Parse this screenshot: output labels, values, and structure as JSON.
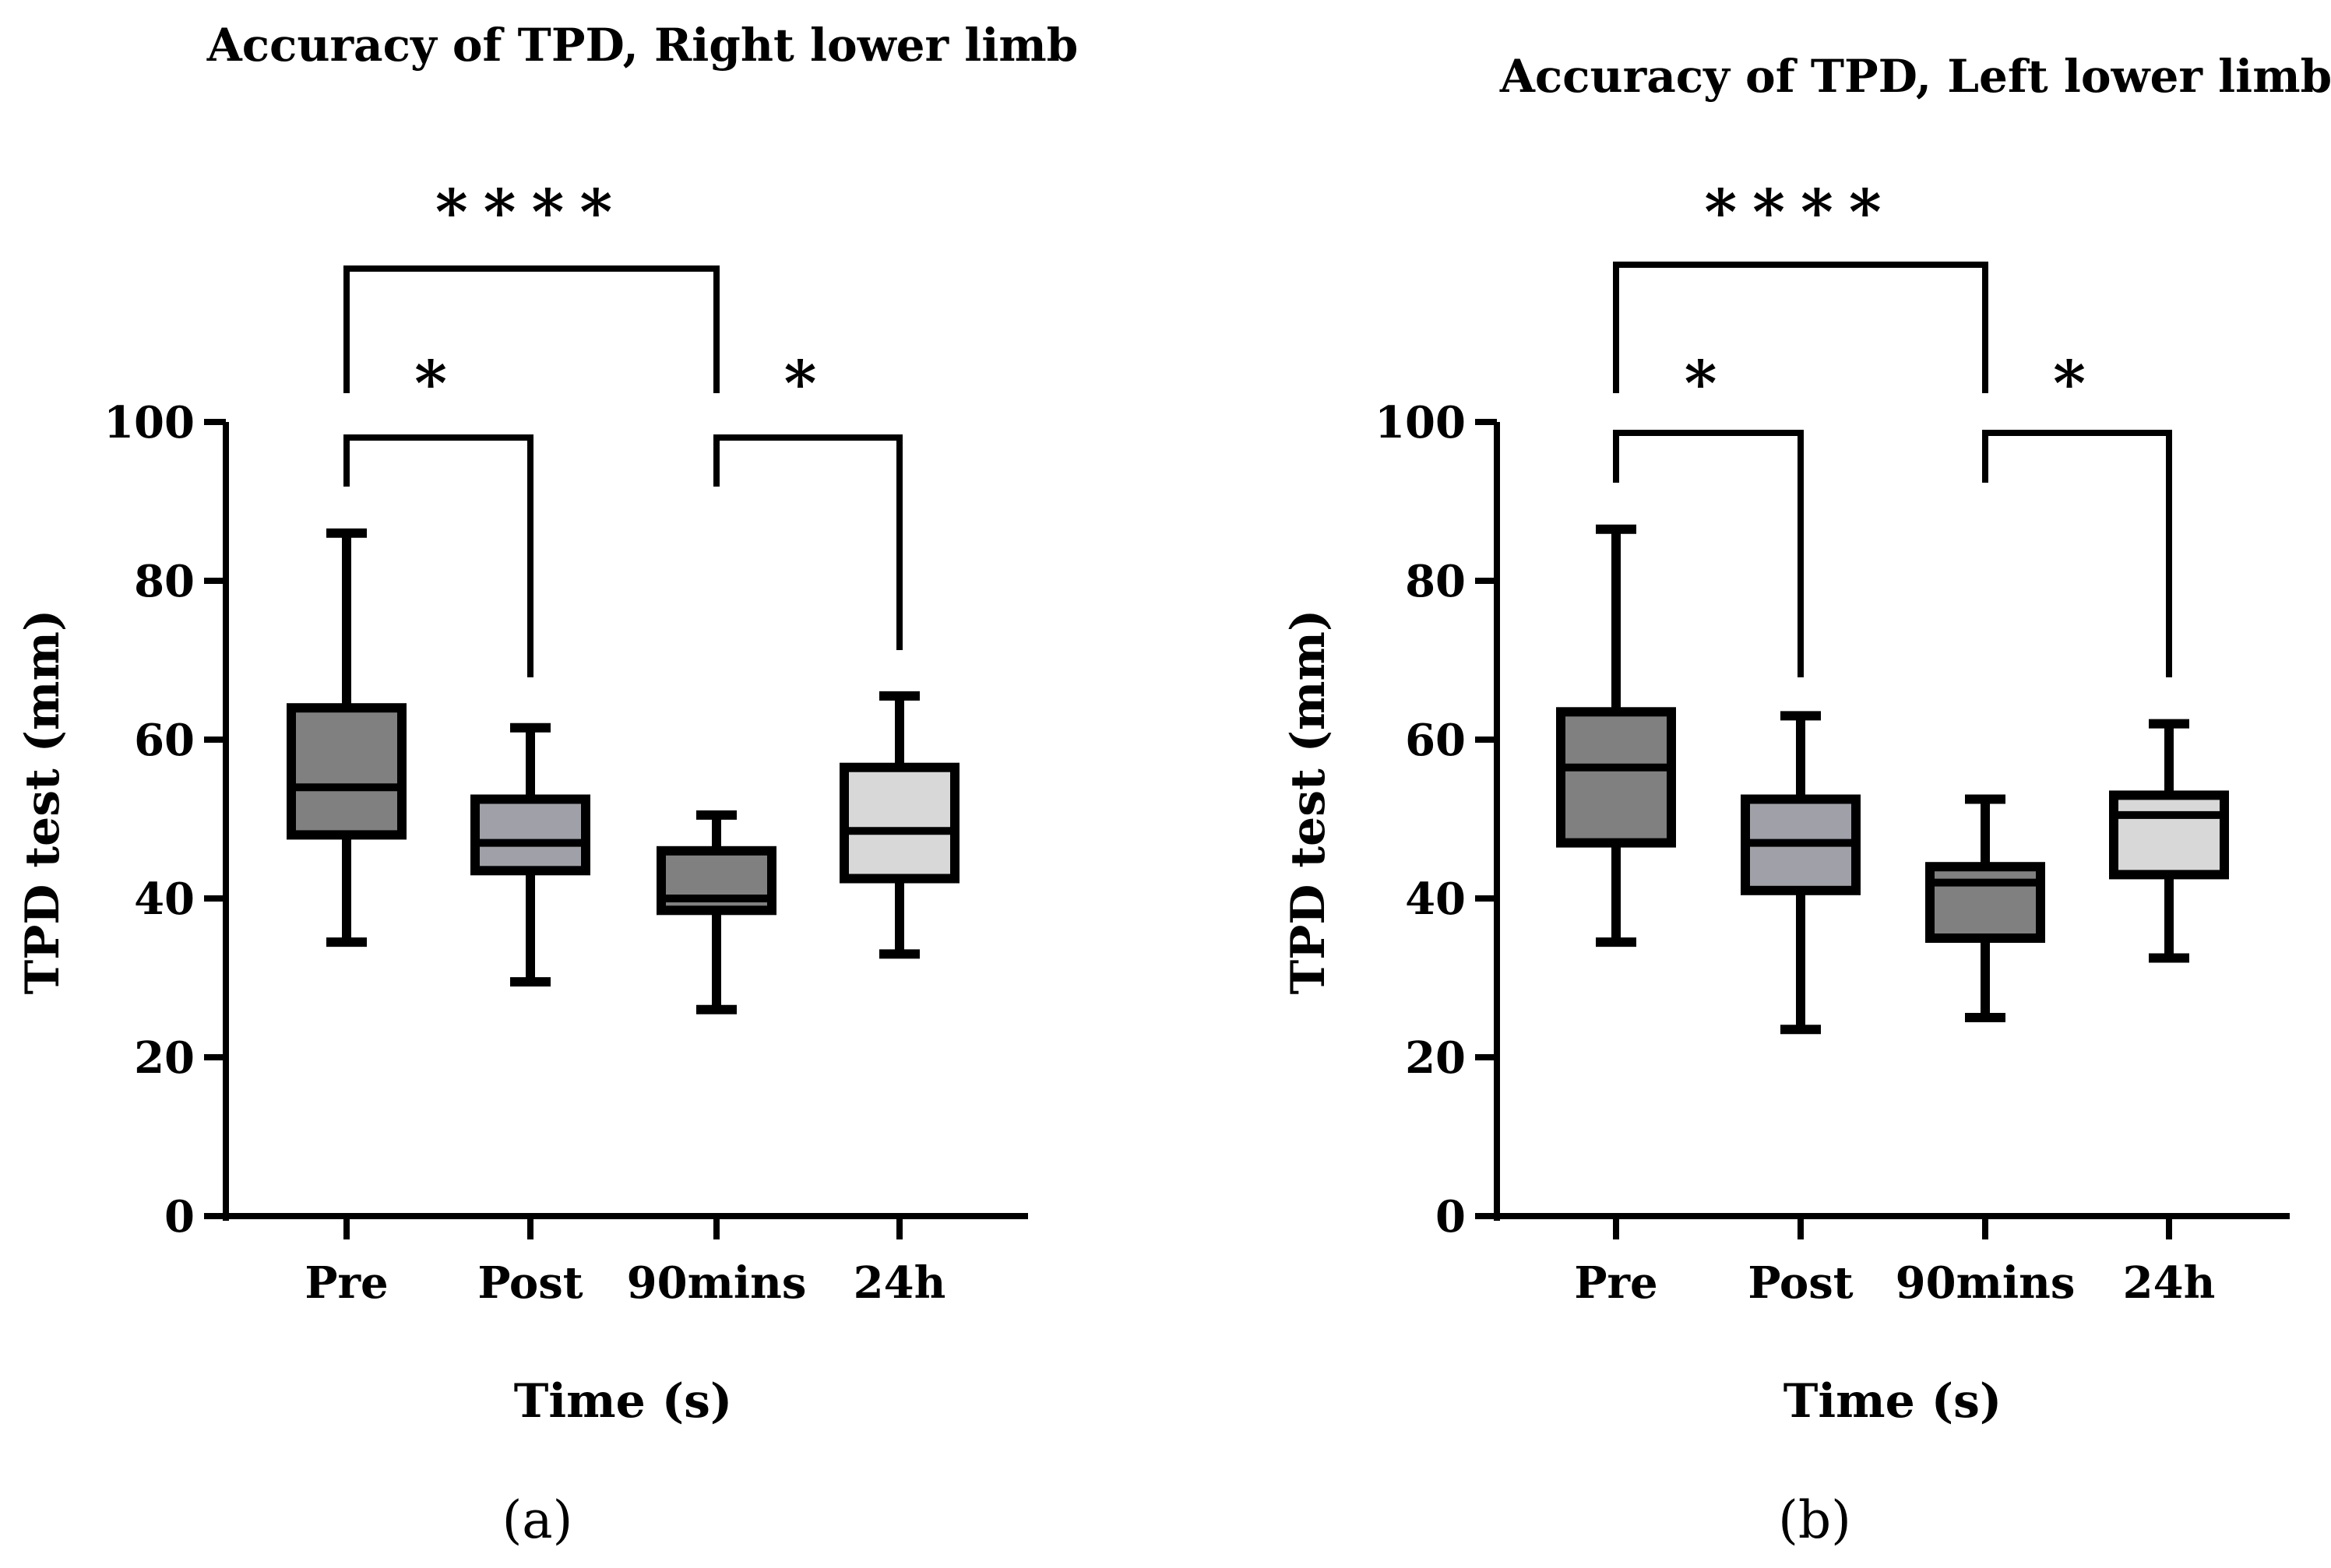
{
  "chart_data": [
    {
      "type": "box",
      "panel_label": "(a)",
      "title": "Accuracy of TPD, Right lower limb",
      "xlabel": "Time (s)",
      "ylabel": "TPD test (mm)",
      "ylim": [
        0,
        100
      ],
      "yticks": [
        "0",
        "20",
        "40",
        "60",
        "80",
        "100"
      ],
      "categories": [
        "Pre",
        "Post",
        "90mins",
        "24h"
      ],
      "colors": [
        "#808080",
        "#a0a0a8",
        "#808080",
        "#d8d8d8"
      ],
      "boxes": [
        {
          "category": "Pre",
          "min": 34.5,
          "q1": 48,
          "median": 54,
          "q3": 64,
          "max": 86
        },
        {
          "category": "Post",
          "min": 29.5,
          "q1": 43.5,
          "median": 47,
          "q3": 52.5,
          "max": 61.5
        },
        {
          "category": "90mins",
          "min": 26,
          "q1": 38.5,
          "median": 40,
          "q3": 46,
          "max": 50.5
        },
        {
          "category": "24h",
          "min": 33,
          "q1": 42.5,
          "median": 48.5,
          "q3": 56.5,
          "max": 65.5
        }
      ],
      "significance": [
        {
          "from": "Pre",
          "to": "90mins",
          "label": "****"
        },
        {
          "from": "Pre",
          "to": "Post",
          "label": "*"
        },
        {
          "from": "90mins",
          "to": "24h",
          "label": "*"
        }
      ]
    },
    {
      "type": "box",
      "panel_label": "(b)",
      "title": "Accuracy of TPD, Left lower limb",
      "xlabel": "Time (s)",
      "ylabel": "TPD test (mm)",
      "ylim": [
        0,
        100
      ],
      "yticks": [
        "0",
        "20",
        "40",
        "60",
        "80",
        "100"
      ],
      "categories": [
        "Pre",
        "Post",
        "90mins",
        "24h"
      ],
      "colors": [
        "#808080",
        "#a0a0a8",
        "#808080",
        "#d8d8d8"
      ],
      "boxes": [
        {
          "category": "Pre",
          "min": 34.5,
          "q1": 47,
          "median": 56.5,
          "q3": 63.5,
          "max": 86.5
        },
        {
          "category": "Post",
          "min": 23.5,
          "q1": 41,
          "median": 47,
          "q3": 52.5,
          "max": 63
        },
        {
          "category": "90mins",
          "min": 25,
          "q1": 35,
          "median": 42,
          "q3": 44,
          "max": 52.5
        },
        {
          "category": "24h",
          "min": 32.5,
          "q1": 43,
          "median": 50.5,
          "q3": 53,
          "max": 62
        }
      ],
      "significance": [
        {
          "from": "Pre",
          "to": "90mins",
          "label": "****"
        },
        {
          "from": "Pre",
          "to": "Post",
          "label": "*"
        },
        {
          "from": "90mins",
          "to": "24h",
          "label": "*"
        }
      ]
    }
  ]
}
